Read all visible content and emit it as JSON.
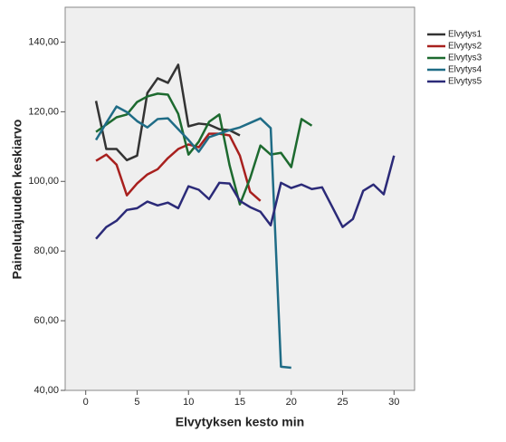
{
  "chart_data": {
    "type": "line",
    "x_label": "Elvytyksen kesto min",
    "y_label": "Painelutajuuden keskiarvo",
    "xlim": [
      -2,
      32
    ],
    "ylim": [
      40,
      150
    ],
    "xticks": [
      0,
      5,
      10,
      15,
      20,
      25,
      30
    ],
    "yticks": [
      {
        "value": 40,
        "label": "40,00"
      },
      {
        "value": 60,
        "label": "60,00"
      },
      {
        "value": 80,
        "label": "80,00"
      },
      {
        "value": 100,
        "label": "100,00"
      },
      {
        "value": 120,
        "label": "120,00"
      },
      {
        "value": 140,
        "label": "140,00"
      }
    ],
    "legend": "right",
    "series": [
      {
        "name": "Elvytys1",
        "color": "#333333",
        "x": [
          1,
          2,
          3,
          4,
          5,
          6,
          7,
          8,
          9,
          10,
          11,
          12,
          13,
          14,
          15
        ],
        "values": [
          123.1,
          109.3,
          109.3,
          106.1,
          107.4,
          125.4,
          129.6,
          128.3,
          133.5,
          115.8,
          116.6,
          116.3,
          115.0,
          114.7,
          113.2
        ]
      },
      {
        "name": "Elvytys2",
        "color": "#a8201e",
        "x": [
          1,
          2,
          3,
          4,
          5,
          6,
          7,
          8,
          9,
          10,
          11,
          12,
          13,
          14,
          15,
          16,
          17
        ],
        "values": [
          105.9,
          107.7,
          104.8,
          96.0,
          99.4,
          102.0,
          103.5,
          106.7,
          109.3,
          110.6,
          109.8,
          113.7,
          113.7,
          113.2,
          107.4,
          97.0,
          94.4
        ]
      },
      {
        "name": "Elvytys3",
        "color": "#1d6a2f",
        "x": [
          1,
          2,
          3,
          4,
          5,
          6,
          7,
          8,
          9,
          10,
          11,
          12,
          13,
          14,
          15,
          16,
          17,
          18,
          19,
          20,
          21,
          22
        ],
        "values": [
          114.2,
          116.3,
          118.4,
          119.2,
          122.8,
          124.4,
          125.2,
          124.9,
          119.4,
          107.7,
          111.4,
          117.1,
          119.2,
          104.6,
          93.4,
          100.9,
          110.3,
          107.7,
          108.2,
          104.1,
          117.9,
          116.0
        ]
      },
      {
        "name": "Elvytys4",
        "color": "#1f6c86",
        "x": [
          1,
          2,
          3,
          4,
          5,
          6,
          7,
          8,
          9,
          10,
          11,
          12,
          13,
          14,
          15,
          16,
          17,
          18,
          19,
          20
        ],
        "values": [
          111.9,
          116.8,
          121.5,
          119.9,
          117.3,
          115.5,
          117.9,
          118.1,
          115.0,
          111.9,
          108.5,
          112.7,
          113.7,
          114.7,
          115.5,
          116.8,
          118.1,
          115.3,
          46.8,
          46.5
        ]
      },
      {
        "name": "Elvytys5",
        "color": "#2b2a78",
        "x": [
          1,
          2,
          3,
          4,
          5,
          6,
          7,
          8,
          9,
          10,
          11,
          12,
          13,
          14,
          15,
          16,
          17,
          18,
          19,
          20,
          21,
          22,
          23,
          24,
          25,
          26,
          27,
          28,
          29,
          30
        ],
        "values": [
          83.5,
          86.9,
          88.7,
          91.8,
          92.3,
          94.2,
          93.1,
          93.9,
          92.3,
          98.6,
          97.6,
          94.9,
          99.6,
          99.4,
          94.4,
          92.6,
          91.3,
          87.4,
          99.6,
          98.1,
          99.1,
          97.8,
          98.3,
          92.6,
          86.9,
          89.2,
          97.3,
          99.1,
          96.3,
          107.4
        ]
      }
    ]
  }
}
